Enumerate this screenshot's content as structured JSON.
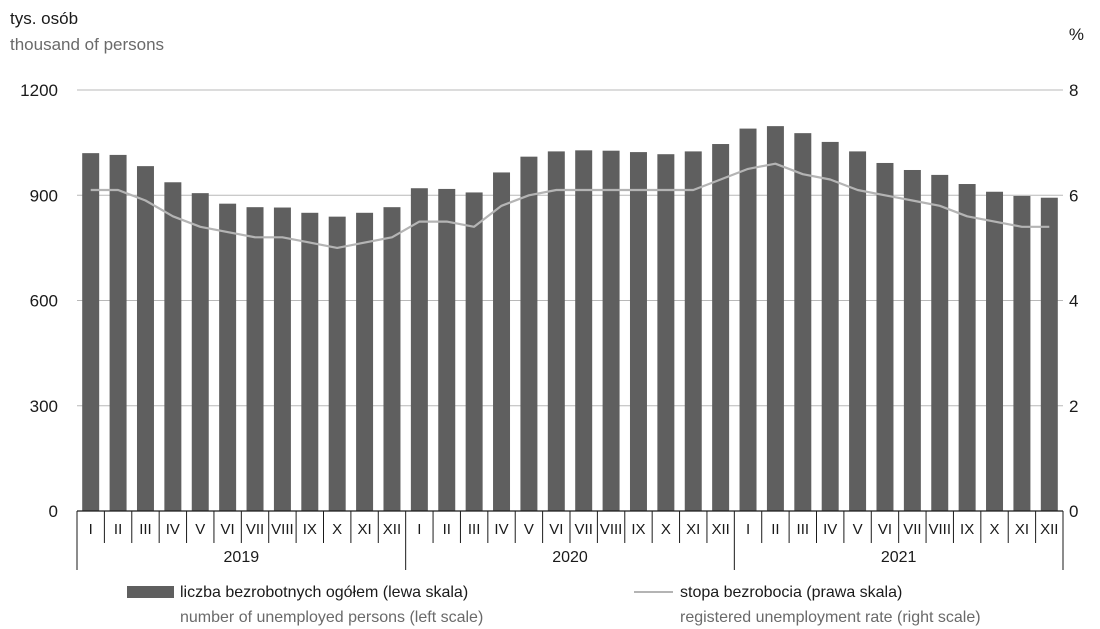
{
  "chart_data": {
    "type": "bar",
    "left_axis_unit_pl": "tys. osób",
    "left_axis_unit_en": "thousand of persons",
    "right_axis_unit": "%",
    "left_ylim": [
      0,
      1200
    ],
    "left_ticks": [
      0,
      300,
      600,
      900,
      1200
    ],
    "right_ylim": [
      0,
      8
    ],
    "right_ticks": [
      0,
      2,
      4,
      6,
      8
    ],
    "grid": "horizontal",
    "months": [
      "I",
      "II",
      "III",
      "IV",
      "V",
      "VI",
      "VII",
      "VIII",
      "IX",
      "X",
      "XI",
      "XII"
    ],
    "years": [
      "2019",
      "2020",
      "2021"
    ],
    "series": [
      {
        "name_pl": "liczba bezrobotnych ogółem (lewa skala)",
        "name_en": "number of unemployed persons (left scale)",
        "axis": "left",
        "kind": "bar",
        "color": "#5f5f5f",
        "values": [
          1020,
          1015,
          983,
          937,
          906,
          876,
          866,
          865,
          850,
          839,
          850,
          866,
          920,
          918,
          908,
          965,
          1010,
          1025,
          1028,
          1027,
          1023,
          1017,
          1025,
          1046,
          1090,
          1097,
          1077,
          1052,
          1025,
          992,
          972,
          958,
          932,
          910,
          898,
          893
        ]
      },
      {
        "name_pl": "stopa bezrobocia (prawa skala)",
        "name_en": "registered unemployment rate (right scale)",
        "axis": "right",
        "kind": "line",
        "color": "#b4b4b4",
        "values": [
          6.1,
          6.1,
          5.9,
          5.6,
          5.4,
          5.3,
          5.2,
          5.2,
          5.1,
          5.0,
          5.1,
          5.2,
          5.5,
          5.5,
          5.4,
          5.8,
          6.0,
          6.1,
          6.1,
          6.1,
          6.1,
          6.1,
          6.1,
          6.3,
          6.5,
          6.6,
          6.4,
          6.3,
          6.1,
          6.0,
          5.9,
          5.8,
          5.6,
          5.5,
          5.4,
          5.4
        ]
      }
    ]
  }
}
